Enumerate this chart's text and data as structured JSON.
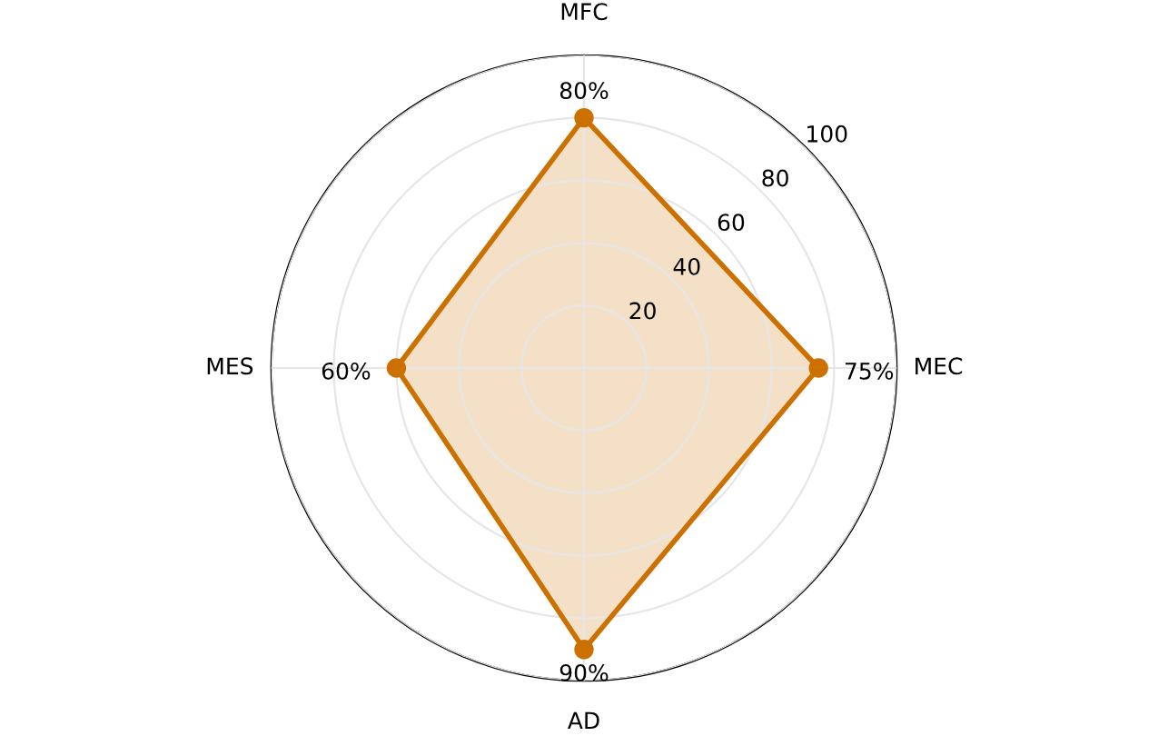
{
  "chart_data": {
    "type": "radar",
    "categories": [
      "MFC",
      "MEC",
      "AD",
      "MES"
    ],
    "series": [
      {
        "color": "#cc7000",
        "values": [
          80,
          75,
          90,
          60
        ],
        "value_labels": [
          "80%",
          "75%",
          "90%",
          "60%"
        ]
      }
    ],
    "ylim": [
      0,
      100
    ],
    "yticks": [
      20,
      40,
      60,
      80,
      100
    ],
    "grid": true,
    "marker": "circle",
    "line_style": "solid"
  }
}
